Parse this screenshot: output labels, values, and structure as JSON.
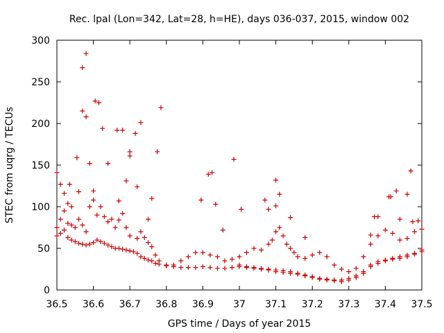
{
  "chart_data": {
    "type": "scatter",
    "title": "Rec. lpal (Lon=342, Lat=28, h=HE), days 036-037, 2015, window 002",
    "xlabel": "GPS time / Days of year 2015",
    "ylabel": "STEC from uqrg / TECUs",
    "xlim": [
      36.5,
      37.5
    ],
    "ylim": [
      0,
      300
    ],
    "x_ticks": [
      "36.5",
      "36.6",
      "36.7",
      "36.8",
      "36.9",
      "37",
      "37.1",
      "37.2",
      "37.3",
      "37.4",
      "37.5"
    ],
    "y_ticks": [
      "0",
      "50",
      "100",
      "150",
      "200",
      "250",
      "300"
    ],
    "grid": false,
    "legend": "none",
    "marker": "plus",
    "color": "#cc0000",
    "series": [
      {
        "points": [
          [
            36.5,
            141
          ],
          [
            36.51,
            127
          ],
          [
            36.52,
            116
          ],
          [
            36.53,
            104
          ],
          [
            36.535,
            127
          ],
          [
            36.54,
            100
          ],
          [
            36.555,
            159
          ],
          [
            36.56,
            118
          ],
          [
            36.57,
            267
          ],
          [
            36.57,
            215
          ],
          [
            36.58,
            284
          ],
          [
            36.58,
            208
          ],
          [
            36.59,
            152
          ],
          [
            36.6,
            119
          ],
          [
            36.605,
            227
          ],
          [
            36.615,
            225
          ],
          [
            36.625,
            194
          ],
          [
            36.64,
            152
          ],
          [
            36.665,
            192
          ],
          [
            36.67,
            107
          ],
          [
            36.68,
            192
          ],
          [
            36.69,
            131
          ],
          [
            36.7,
            166
          ],
          [
            36.7,
            161
          ],
          [
            36.715,
            188
          ],
          [
            36.72,
            124
          ],
          [
            36.73,
            201
          ],
          [
            36.75,
            85
          ],
          [
            36.76,
            110
          ],
          [
            36.775,
            166
          ],
          [
            36.785,
            219
          ],
          [
            36.895,
            108
          ],
          [
            36.915,
            139
          ],
          [
            36.925,
            141
          ],
          [
            36.935,
            103
          ],
          [
            36.955,
            72
          ],
          [
            36.985,
            157
          ],
          [
            37.005,
            97
          ],
          [
            37.07,
            108
          ],
          [
            37.08,
            97
          ],
          [
            37.1,
            132
          ],
          [
            37.1,
            101
          ],
          [
            37.11,
            115
          ],
          [
            37.14,
            87
          ],
          [
            37.18,
            63
          ],
          [
            37.36,
            66
          ],
          [
            37.37,
            88
          ],
          [
            37.38,
            88
          ],
          [
            37.41,
            112
          ],
          [
            37.415,
            112
          ],
          [
            37.43,
            119
          ],
          [
            37.44,
            85
          ],
          [
            37.46,
            115
          ],
          [
            37.47,
            143
          ],
          [
            37.475,
            82
          ],
          [
            37.49,
            83
          ]
        ]
      },
      {
        "points": [
          [
            36.5,
            75
          ],
          [
            36.51,
            85
          ],
          [
            36.52,
            95
          ],
          [
            36.53,
            80
          ],
          [
            36.54,
            78
          ],
          [
            36.55,
            75
          ],
          [
            36.56,
            85
          ],
          [
            36.57,
            78
          ],
          [
            36.58,
            70
          ],
          [
            36.59,
            100
          ],
          [
            36.6,
            108
          ],
          [
            36.61,
            90
          ],
          [
            36.62,
            100
          ],
          [
            36.63,
            88
          ],
          [
            36.64,
            82
          ],
          [
            36.65,
            85
          ],
          [
            36.66,
            75
          ],
          [
            36.67,
            84
          ],
          [
            36.68,
            92
          ],
          [
            36.69,
            75
          ],
          [
            36.7,
            65
          ],
          [
            36.72,
            62
          ],
          [
            36.73,
            70
          ],
          [
            36.74,
            63
          ],
          [
            36.75,
            57
          ],
          [
            36.76,
            52
          ],
          [
            36.77,
            42
          ],
          [
            36.78,
            35
          ],
          [
            36.8,
            30
          ],
          [
            36.82,
            30
          ],
          [
            36.84,
            35
          ],
          [
            36.86,
            40
          ],
          [
            36.88,
            45
          ],
          [
            36.9,
            45
          ],
          [
            36.92,
            42
          ],
          [
            36.94,
            40
          ],
          [
            36.96,
            35
          ],
          [
            36.98,
            37
          ],
          [
            37.0,
            40
          ],
          [
            37.02,
            45
          ],
          [
            37.04,
            50
          ],
          [
            37.06,
            48
          ],
          [
            37.08,
            55
          ],
          [
            37.09,
            60
          ],
          [
            37.1,
            70
          ],
          [
            37.11,
            75
          ],
          [
            37.12,
            65
          ],
          [
            37.13,
            55
          ],
          [
            37.14,
            50
          ],
          [
            37.15,
            45
          ],
          [
            37.16,
            40
          ],
          [
            37.18,
            38
          ],
          [
            37.2,
            42
          ],
          [
            37.22,
            45
          ],
          [
            37.24,
            40
          ],
          [
            37.26,
            30
          ],
          [
            37.28,
            25
          ],
          [
            37.3,
            22
          ],
          [
            37.32,
            26
          ],
          [
            37.34,
            40
          ],
          [
            37.36,
            55
          ],
          [
            37.38,
            65
          ],
          [
            37.4,
            72
          ],
          [
            37.42,
            68
          ],
          [
            37.44,
            60
          ],
          [
            37.46,
            62
          ],
          [
            37.48,
            70
          ],
          [
            37.5,
            73
          ]
        ]
      },
      {
        "points": [
          [
            36.5,
            65
          ],
          [
            36.51,
            68
          ],
          [
            36.52,
            72
          ],
          [
            36.53,
            63
          ],
          [
            36.54,
            60
          ],
          [
            36.55,
            58
          ],
          [
            36.56,
            56
          ],
          [
            36.57,
            55
          ],
          [
            36.58,
            54
          ],
          [
            36.59,
            55
          ],
          [
            36.6,
            57
          ],
          [
            36.61,
            60
          ],
          [
            36.62,
            58
          ],
          [
            36.63,
            56
          ],
          [
            36.64,
            54
          ],
          [
            36.65,
            52
          ],
          [
            36.66,
            50
          ],
          [
            36.67,
            50
          ],
          [
            36.68,
            49
          ],
          [
            36.69,
            48
          ],
          [
            36.7,
            47
          ],
          [
            36.71,
            46
          ],
          [
            36.72,
            44
          ],
          [
            36.73,
            40
          ],
          [
            36.74,
            38
          ],
          [
            36.75,
            36
          ],
          [
            36.76,
            35
          ],
          [
            36.77,
            32
          ],
          [
            36.78,
            31
          ],
          [
            36.8,
            29
          ],
          [
            36.82,
            28
          ],
          [
            36.84,
            27
          ],
          [
            36.86,
            27
          ],
          [
            36.88,
            27
          ],
          [
            36.9,
            28
          ],
          [
            36.92,
            27
          ],
          [
            36.94,
            26
          ],
          [
            36.96,
            26
          ],
          [
            36.98,
            27
          ],
          [
            37.0,
            28
          ],
          [
            37.02,
            27
          ],
          [
            37.04,
            26
          ],
          [
            37.06,
            25
          ],
          [
            37.08,
            24
          ],
          [
            37.1,
            22
          ],
          [
            37.12,
            21
          ],
          [
            37.14,
            20
          ],
          [
            37.16,
            19
          ],
          [
            37.18,
            17
          ],
          [
            37.2,
            15
          ],
          [
            37.22,
            13
          ],
          [
            37.24,
            12
          ],
          [
            37.26,
            11
          ],
          [
            37.28,
            10
          ],
          [
            37.3,
            12
          ],
          [
            37.32,
            15
          ],
          [
            37.34,
            20
          ],
          [
            37.36,
            28
          ],
          [
            37.38,
            32
          ],
          [
            37.4,
            35
          ],
          [
            37.42,
            37
          ],
          [
            37.44,
            38
          ],
          [
            37.46,
            40
          ],
          [
            37.48,
            43
          ],
          [
            37.5,
            46
          ]
        ]
      },
      {
        "points": [
          [
            37.0,
            30
          ],
          [
            37.02,
            28
          ],
          [
            37.04,
            27
          ],
          [
            37.06,
            26
          ],
          [
            37.08,
            25
          ],
          [
            37.1,
            24
          ],
          [
            37.12,
            23
          ],
          [
            37.14,
            22
          ],
          [
            37.16,
            20
          ],
          [
            37.18,
            18
          ],
          [
            37.2,
            16
          ],
          [
            37.22,
            14
          ],
          [
            37.24,
            13
          ],
          [
            37.26,
            12
          ],
          [
            37.28,
            12
          ],
          [
            37.3,
            14
          ],
          [
            37.32,
            17
          ],
          [
            37.34,
            22
          ],
          [
            37.36,
            30
          ],
          [
            37.38,
            34
          ],
          [
            37.4,
            36
          ],
          [
            37.42,
            38
          ],
          [
            37.44,
            40
          ],
          [
            37.46,
            42
          ],
          [
            37.48,
            44
          ],
          [
            37.5,
            48
          ]
        ]
      }
    ]
  }
}
